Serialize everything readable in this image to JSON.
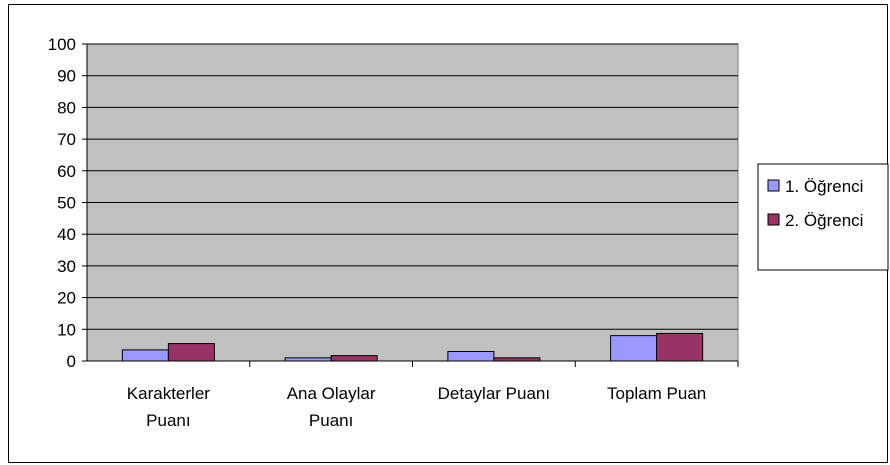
{
  "chart_data": {
    "type": "bar",
    "categories": [
      [
        "Karakterler",
        "Puanı"
      ],
      [
        "Ana Olaylar",
        "Puanı"
      ],
      [
        "Detaylar Puanı"
      ],
      [
        "Toplam Puan"
      ]
    ],
    "series": [
      {
        "name": "1. Öğrenci",
        "color": "#9999ff",
        "values": [
          3.5,
          1.0,
          3.0,
          8.0
        ]
      },
      {
        "name": "2. Öğrenci",
        "color": "#993366",
        "values": [
          5.5,
          1.7,
          1.0,
          8.7
        ]
      }
    ],
    "yticks": [
      0,
      10,
      20,
      30,
      40,
      50,
      60,
      70,
      80,
      90,
      100
    ],
    "ylim": [
      0,
      100
    ],
    "grid": true,
    "plot_background": "#c0c0c0",
    "legend_position": "right"
  }
}
